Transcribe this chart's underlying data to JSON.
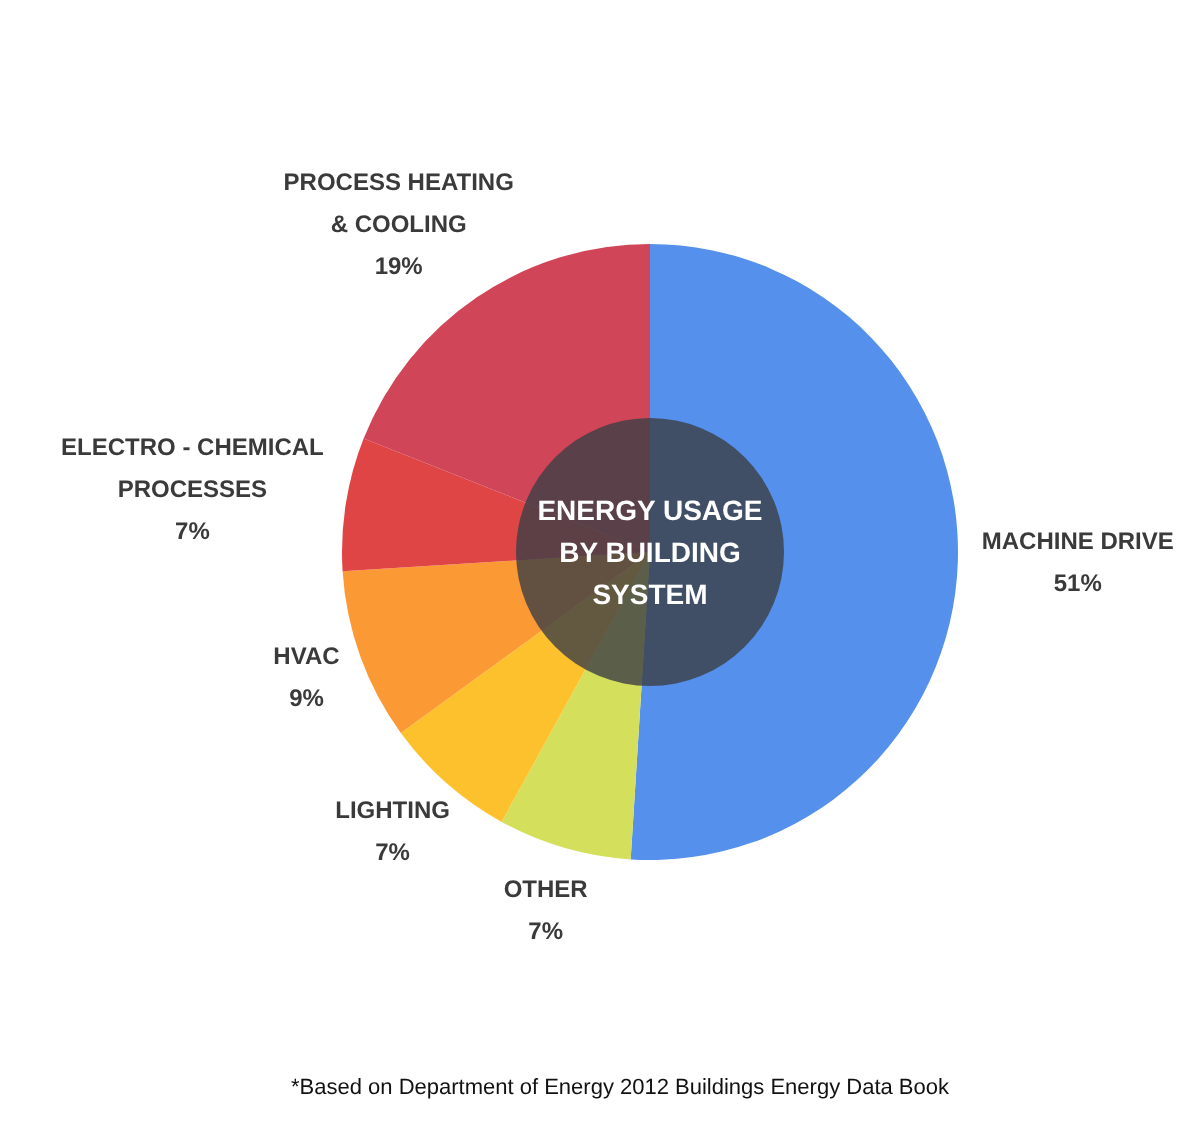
{
  "chart_data": {
    "type": "donut",
    "title": "ENERGY USAGE BY BUILDING SYSTEM",
    "categories": [
      "MACHINE DRIVE",
      "OTHER",
      "LIGHTING",
      "HVAC",
      "ELECTRO - CHEMICAL PROCESSES",
      "PROCESS HEATING & COOLING"
    ],
    "values": [
      51,
      7,
      7,
      9,
      7,
      19
    ],
    "colors": [
      "#5591ec",
      "#d4e05b",
      "#fdc12d",
      "#fb9a35",
      "#e04546",
      "#d04558"
    ],
    "value_labels": [
      "51%",
      "7%",
      "7%",
      "9%",
      "7%",
      "19%"
    ],
    "annotations": [
      "*Based on Department of Energy 2012 Buildings Energy Data Book"
    ]
  }
}
